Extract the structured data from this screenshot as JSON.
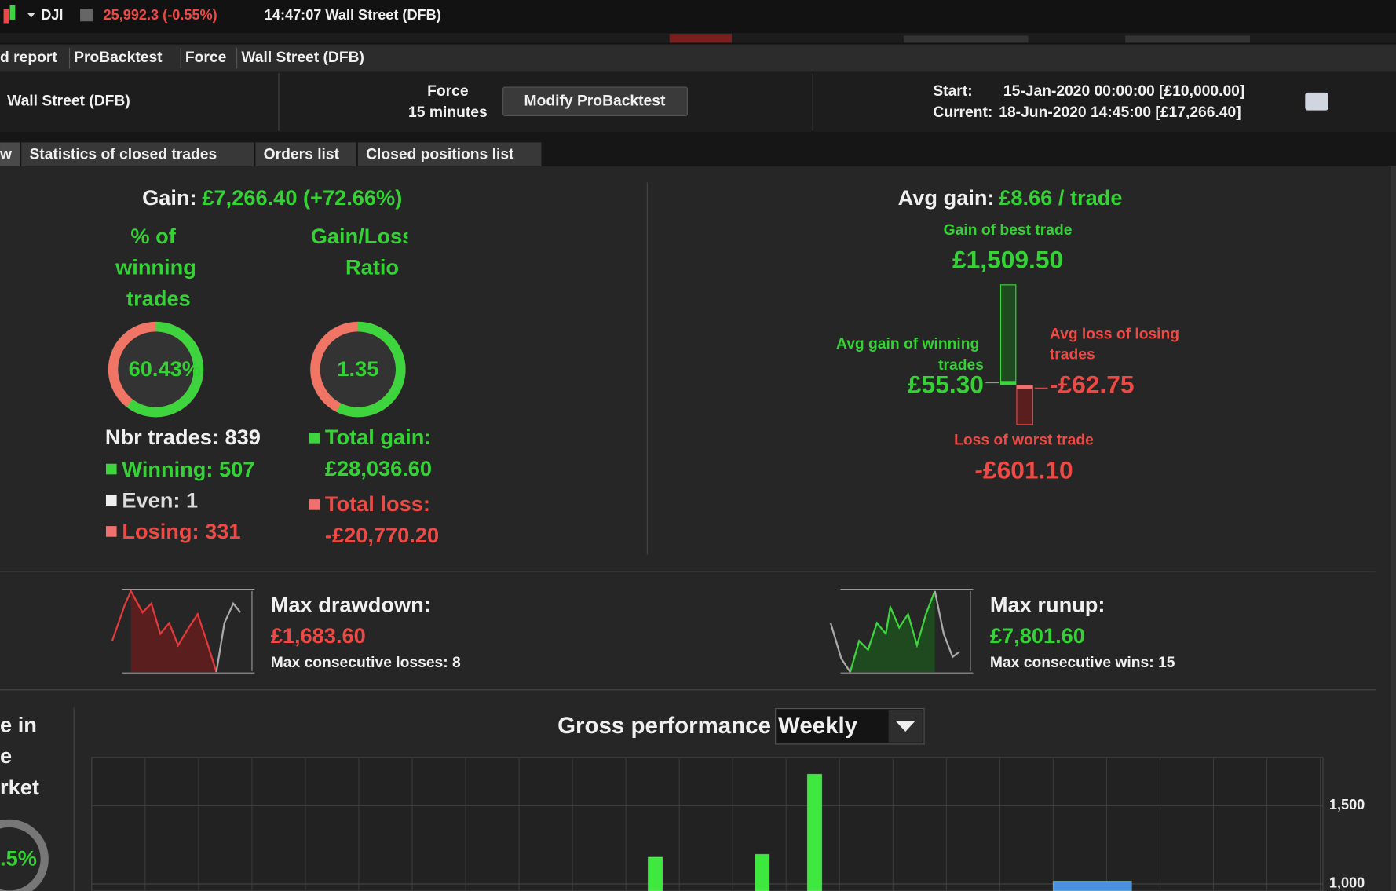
{
  "toolbar": {
    "symbol": "DJI",
    "price": "25,992.3 (-0.55%)",
    "time_instrument": "14:47:07 Wall Street (DFB)"
  },
  "breadcrumb": [
    "d report",
    "ProBacktest",
    "Force",
    "Wall Street (DFB)"
  ],
  "header": {
    "instrument": "Wall Street (DFB)",
    "strategy": "Force",
    "timeframe": "15 minutes",
    "button": "Modify ProBacktest",
    "start_label": "Start:",
    "start_value": "15-Jan-2020 00:00:00 [£10,000.00]",
    "current_label": "Current:",
    "current_value": "18-Jun-2020 14:45:00 [£17,266.40]"
  },
  "tabs": [
    "w",
    "Statistics of closed trades",
    "Orders list",
    "Closed positions list"
  ],
  "summary": {
    "gain_label": "Gain:",
    "gain_value": "£7,266.40 (+72.66%)",
    "winning_pct_title": [
      "% of",
      "winning",
      "trades"
    ],
    "winning_pct": {
      "value": 60.43,
      "label": "60.43%"
    },
    "ratio_title": [
      "Gain/Loss",
      "Ratio"
    ],
    "gain_loss_ratio": 1.35,
    "nbr_trades_label": "Nbr trades:",
    "nbr_trades": 839,
    "winning_label": "Winning:",
    "winning": 507,
    "even_label": "Even:",
    "even": 1,
    "losing_label": "Losing:",
    "losing": 331,
    "total_gain_label": "Total gain:",
    "total_gain": "£28,036.60",
    "total_loss_label": "Total loss:",
    "total_loss": "-£20,770.20"
  },
  "trades": {
    "avg_gain_label": "Avg gain:",
    "avg_gain": "£8.66 / trade",
    "best_label": "Gain of best trade",
    "best": "£1,509.50",
    "avg_win_label": [
      "Avg gain of winning",
      "trades"
    ],
    "avg_win": "£55.30",
    "avg_loss_label": [
      "Avg loss of losing",
      "trades"
    ],
    "avg_loss": "-£62.75",
    "worst_label": "Loss of worst trade",
    "worst": "-£601.10"
  },
  "drawdown": {
    "label": "Max drawdown:",
    "value": "£1,683.60",
    "consecutive": "Max consecutive losses: 8"
  },
  "runup": {
    "label": "Max runup:",
    "value": "£7,801.60",
    "consecutive": "Max consecutive wins: 15"
  },
  "market_time": {
    "title": [
      "e in",
      "e",
      "rket"
    ],
    "value": ".5%"
  },
  "gross_performance": {
    "title": "Gross performance",
    "period": "Weekly",
    "ylim": [
      1000,
      1500
    ],
    "yticks": [
      {
        "value": 1500,
        "label": "1,500"
      },
      {
        "value": 1000,
        "label": "1,000"
      }
    ],
    "series": [
      {
        "color": "#3fe83f",
        "values": [
          1170,
          1188,
          1699
        ]
      },
      {
        "color": "#4a8fe0",
        "values": [
          1017
        ]
      }
    ]
  }
}
